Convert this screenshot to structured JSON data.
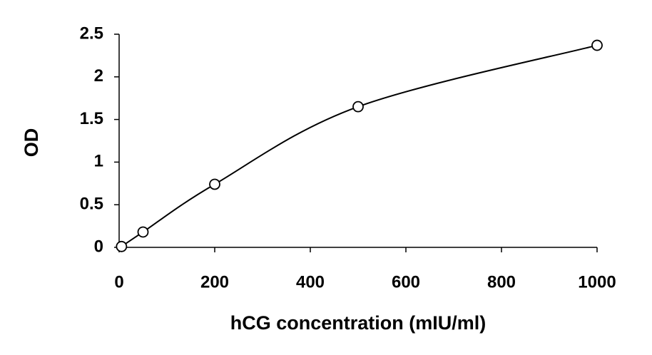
{
  "chart_data": {
    "type": "scatter",
    "x_label": "hCG concentration (mIU/ml)",
    "y_label": "OD",
    "x": [
      5,
      50,
      200,
      500,
      1000
    ],
    "series": [
      {
        "color": "#000000",
        "values": [
          0.01,
          0.18,
          0.74,
          1.65,
          2.37
        ]
      }
    ],
    "xlim": [
      0,
      1000
    ],
    "xticks": [
      0,
      200,
      400,
      600,
      800,
      1000
    ],
    "ylim": [
      0,
      2.5
    ],
    "yticks": [
      0,
      0.5,
      1,
      1.5,
      2,
      2.5
    ],
    "grid": false,
    "trendline": true
  }
}
